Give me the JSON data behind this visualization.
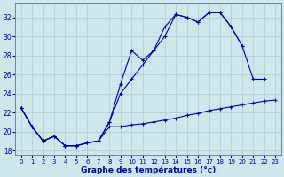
{
  "title": "Graphe des températures (°c)",
  "bg_color": "#cce8ea",
  "line_color": "#0000aa",
  "grid_color": "#aacccc",
  "ylim": [
    17.5,
    33.5
  ],
  "xlim": [
    -0.5,
    23.5
  ],
  "yticks": [
    18,
    20,
    22,
    24,
    26,
    28,
    30,
    32
  ],
  "xticks": [
    0,
    1,
    2,
    3,
    4,
    5,
    6,
    7,
    8,
    9,
    10,
    11,
    12,
    13,
    14,
    15,
    16,
    17,
    18,
    19,
    20,
    21,
    22,
    23
  ],
  "line1_x": [
    0,
    1,
    2,
    3,
    4,
    5,
    6,
    7,
    8,
    9,
    10,
    11,
    12,
    13,
    14,
    15,
    16,
    17,
    18,
    19,
    20,
    21,
    22,
    23
  ],
  "line1_y": [
    22.5,
    20.5,
    19.0,
    19.5,
    18.5,
    18.5,
    18.8,
    19.0,
    21.0,
    24.0,
    25.5,
    27.0,
    28.5,
    30.0,
    32.3,
    32.0,
    31.5,
    32.5,
    32.5,
    31.0,
    29.0,
    null,
    null,
    null
  ],
  "line2_x": [
    0,
    1,
    2,
    3,
    4,
    5,
    6,
    7,
    8,
    9,
    10,
    11,
    12,
    13,
    14,
    15,
    16,
    17,
    18,
    19,
    20,
    21,
    22,
    23
  ],
  "line2_y": [
    22.5,
    20.5,
    19.0,
    19.5,
    18.5,
    18.5,
    18.8,
    19.0,
    21.0,
    25.0,
    28.5,
    27.5,
    28.5,
    31.0,
    32.3,
    32.0,
    31.5,
    32.5,
    32.5,
    31.0,
    29.0,
    25.5,
    25.5,
    null
  ],
  "line3_x": [
    0,
    1,
    2,
    3,
    4,
    5,
    6,
    7,
    8,
    9,
    10,
    11,
    12,
    13,
    14,
    15,
    16,
    17,
    18,
    19,
    20,
    21,
    22,
    23
  ],
  "line3_y": [
    22.5,
    20.5,
    19.0,
    19.5,
    18.5,
    18.5,
    18.8,
    19.0,
    20.5,
    20.5,
    20.7,
    20.8,
    21.0,
    21.2,
    21.4,
    21.7,
    21.9,
    22.2,
    22.4,
    22.6,
    22.8,
    23.0,
    23.2,
    23.3
  ]
}
